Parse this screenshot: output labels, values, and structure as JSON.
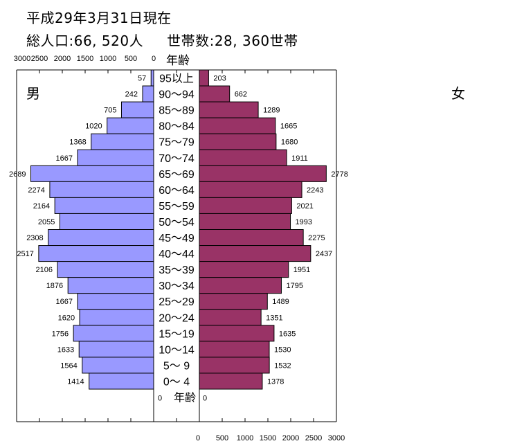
{
  "header": {
    "date_line": "平成29年3月31日現在",
    "population_line": "総人口:66, 520人",
    "households_line": "世帯数:28, 360世帯"
  },
  "chart_data": {
    "type": "bar",
    "orientation": "horizontal-pyramid",
    "category_axis_label": "年齢",
    "categories": [
      "95以上",
      "90～94",
      "85～89",
      "80～84",
      "75～79",
      "70～74",
      "65～69",
      "60～64",
      "55～59",
      "50～54",
      "45～49",
      "40～44",
      "35～39",
      "30～34",
      "25～29",
      "20～24",
      "15～19",
      "10～14",
      "5～ 9",
      "0～ 4"
    ],
    "series": [
      {
        "name": "男",
        "color": "#9999ff",
        "side": "left",
        "values": [
          57,
          242,
          705,
          1020,
          1368,
          1667,
          2689,
          2274,
          2164,
          2055,
          2308,
          2517,
          2106,
          1876,
          1667,
          1620,
          1756,
          1633,
          1564,
          1414
        ]
      },
      {
        "name": "女",
        "color": "#993366",
        "side": "right",
        "values": [
          203,
          662,
          1289,
          1665,
          1680,
          1911,
          2778,
          2243,
          2021,
          1993,
          2275,
          2437,
          1951,
          1795,
          1489,
          1351,
          1635,
          1530,
          1532,
          1378
        ]
      }
    ],
    "xlim": [
      0,
      3000
    ],
    "x_ticks": [
      "0",
      "500",
      "1000",
      "1500",
      "2000",
      "2500",
      "3000"
    ],
    "left_axis_ticks_top": [
      "3000",
      "2500",
      "2000",
      "1500",
      "1000",
      "500",
      "0"
    ],
    "bottom_zero_labels": [
      "0",
      "0"
    ],
    "data_labels": true,
    "grid": false
  }
}
